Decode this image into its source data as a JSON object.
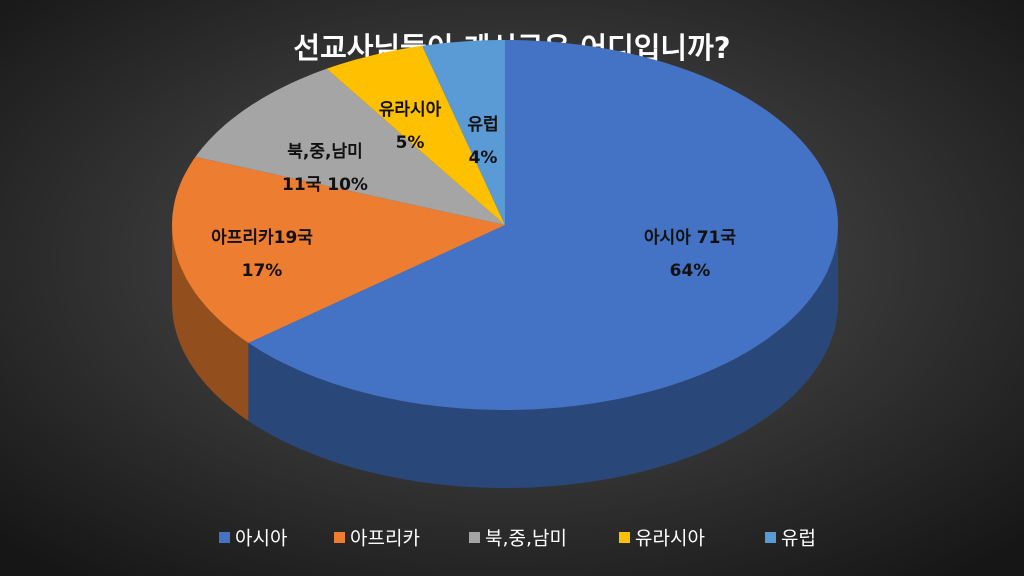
{
  "chart_data": {
    "type": "pie",
    "title": "선교사님들이 계신곳은 어디입니까?",
    "categories": [
      "아시아",
      "아프리카",
      "북,중,남미",
      "유라시아",
      "유럽"
    ],
    "values": [
      64,
      17,
      10,
      5,
      4
    ],
    "value_labels": [
      "64%",
      "17%",
      "10%",
      "5%",
      "4%"
    ],
    "label_lines": [
      [
        "아시아 71국"
      ],
      [
        "아프리카19국"
      ],
      [
        "북,중,남미",
        "11국"
      ],
      [
        "유라시아"
      ],
      [
        "유럽"
      ]
    ],
    "colors": [
      "#4472c4",
      "#ed7d31",
      "#a5a5a5",
      "#ffc000",
      "#5b9bd5"
    ],
    "legend": "bottom"
  }
}
